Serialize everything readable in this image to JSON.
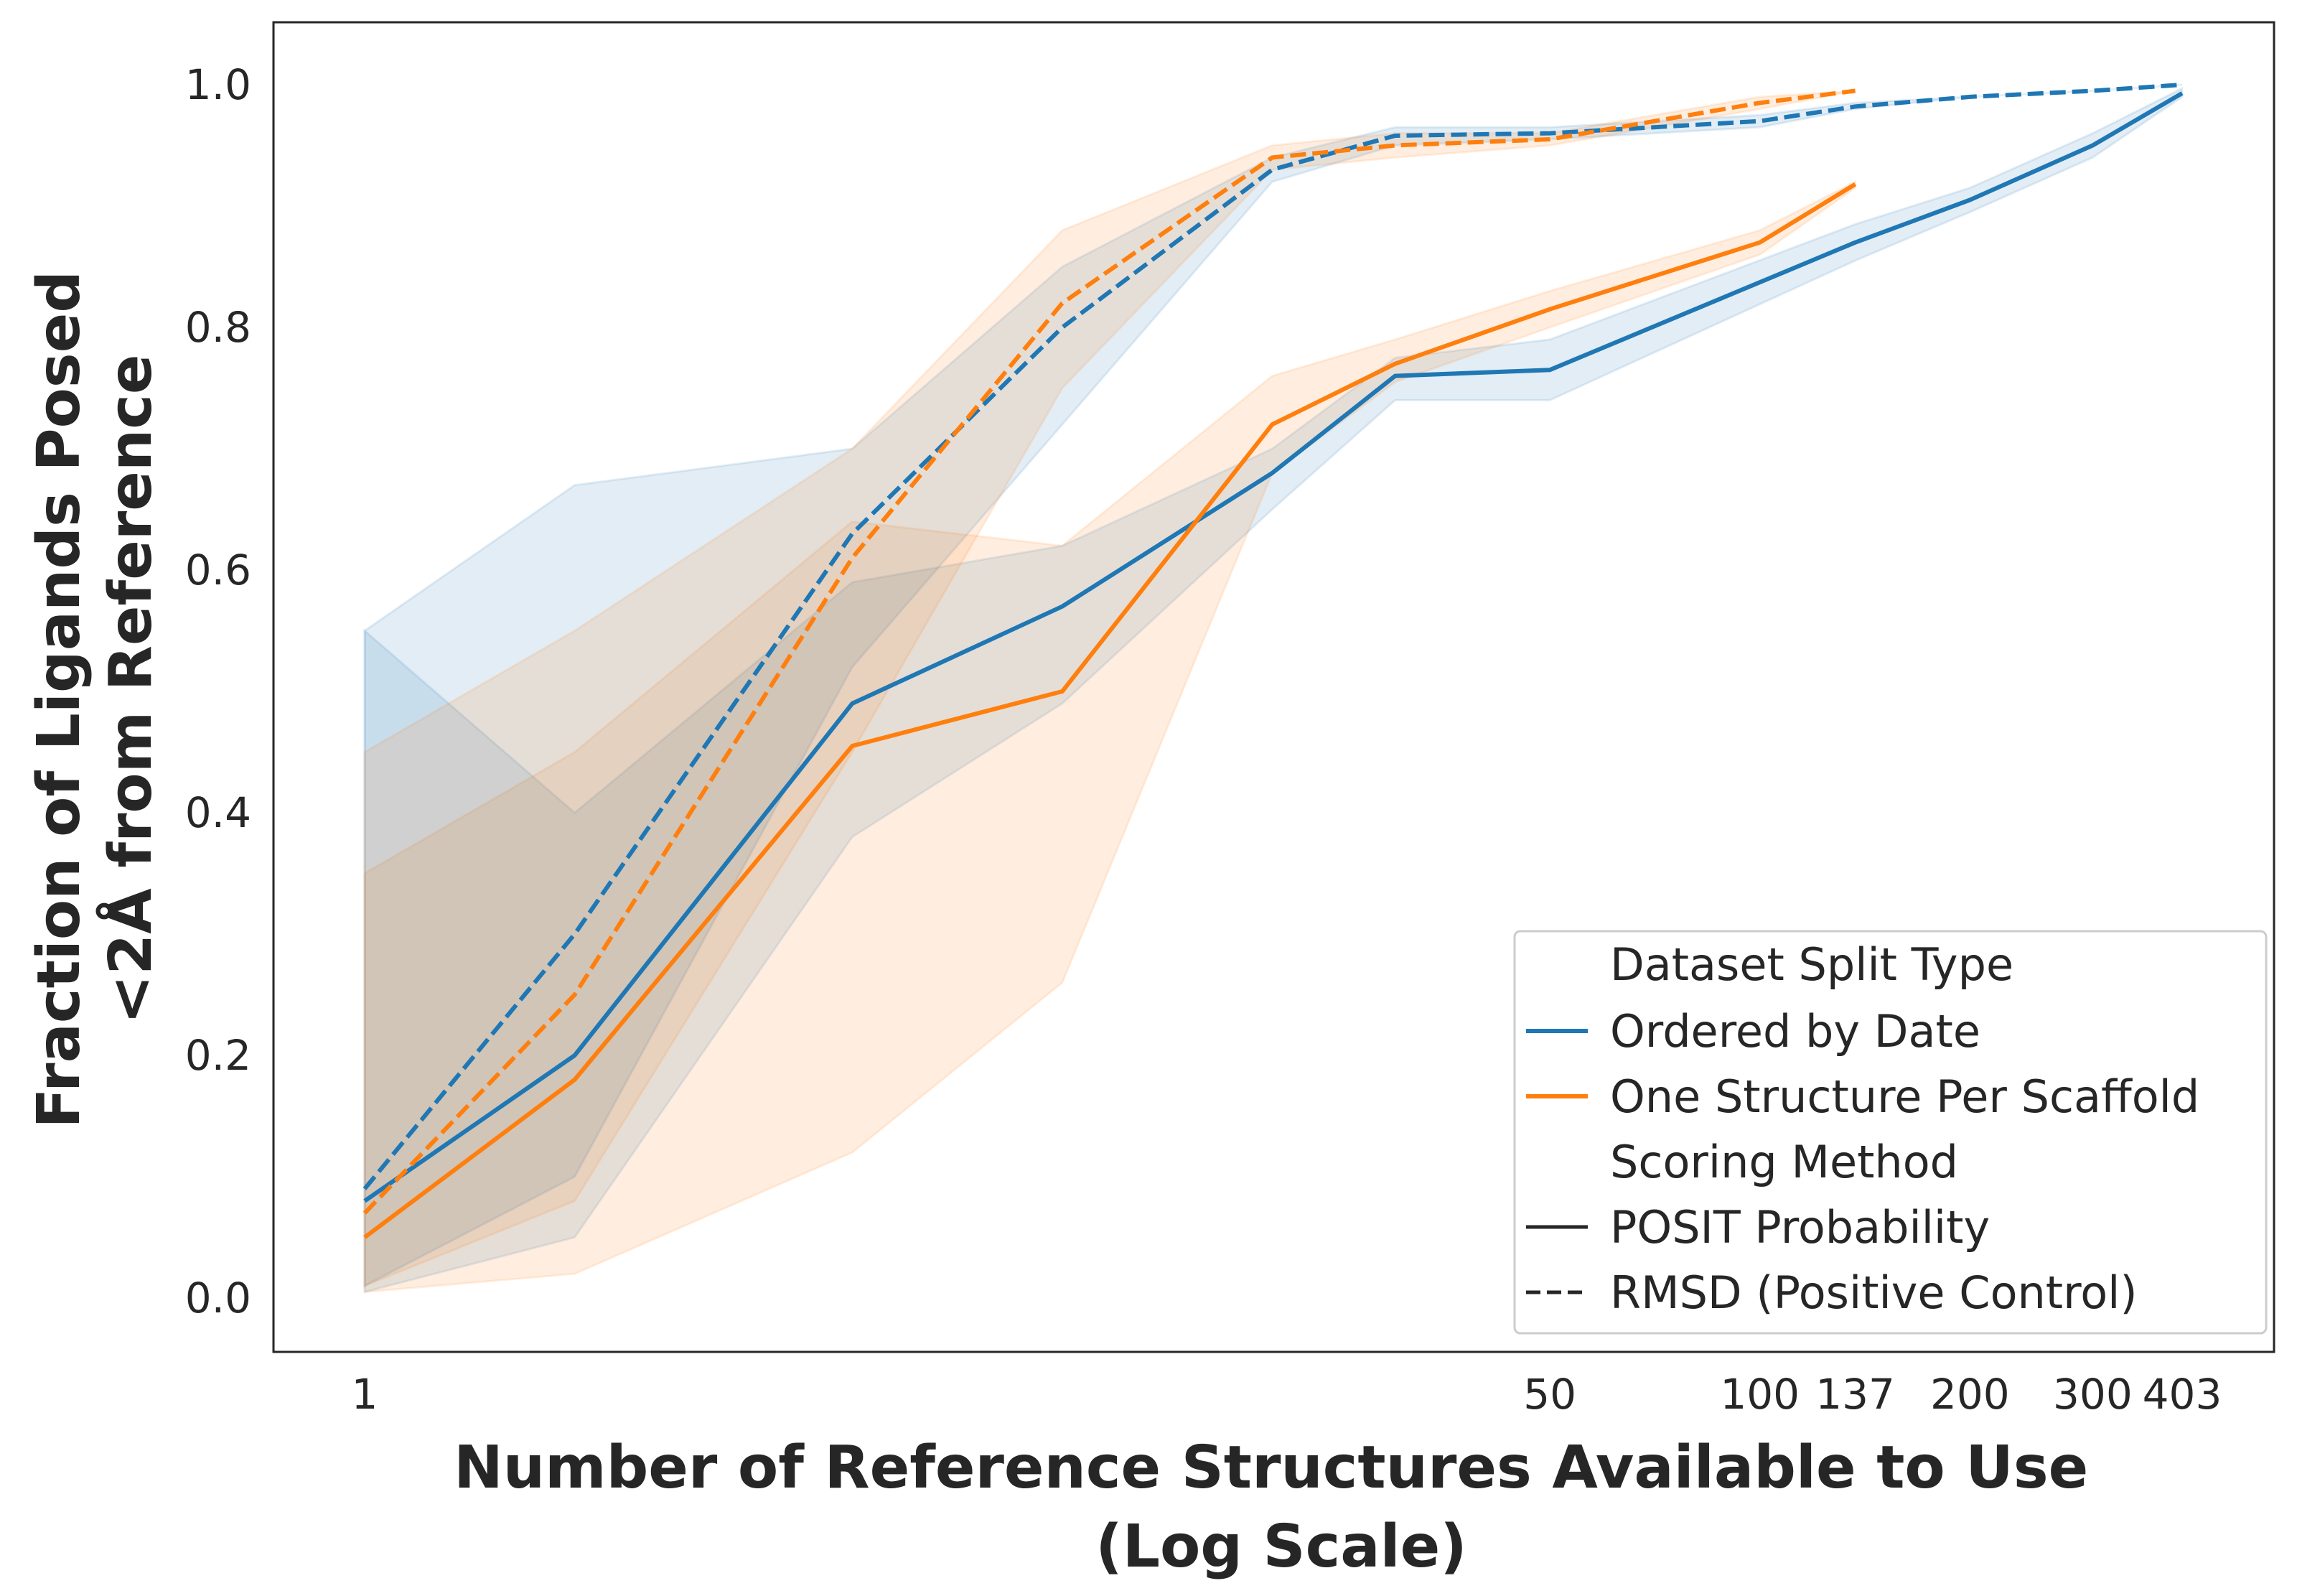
{
  "chart_data": {
    "type": "line",
    "xlabel": [
      "Number of Reference Structures Available to Use",
      "(Log Scale)"
    ],
    "ylabel": [
      "Fraction of Ligands Posed",
      "<2Å from Reference"
    ],
    "x_scale": "log",
    "x_ticks": [
      1,
      50,
      100,
      137,
      200,
      300,
      403
    ],
    "x_tick_labels": [
      "1",
      "50",
      "100",
      "137",
      "200",
      "300",
      "403"
    ],
    "y_ticks": [
      0.0,
      0.2,
      0.4,
      0.6,
      0.8,
      1.0
    ],
    "y_tick_labels": [
      "0.0",
      "0.2",
      "0.4",
      "0.6",
      "0.8",
      "1.0"
    ],
    "ylim": [
      -0.045,
      1.05
    ],
    "grid": false,
    "legend": {
      "placement": "lower right",
      "entries": [
        {
          "label": "Dataset Split Type",
          "kind": "header"
        },
        {
          "label": "Ordered by Date",
          "kind": "color",
          "color": "#1f77b4"
        },
        {
          "label": "One Structure Per Scaffold",
          "kind": "color",
          "color": "#ff7f0e"
        },
        {
          "label": "Scoring Method",
          "kind": "header"
        },
        {
          "label": "POSIT Probability",
          "kind": "style",
          "dash": "solid"
        },
        {
          "label": "RMSD (Positive Control)",
          "kind": "style",
          "dash": "dashed"
        }
      ]
    },
    "series": [
      {
        "split": "Ordered by Date",
        "method": "POSIT Probability",
        "color": "#1f77b4",
        "dash": "solid",
        "x": [
          1,
          2,
          5,
          10,
          20,
          30,
          50,
          137,
          200,
          300,
          403
        ],
        "y": [
          0.08,
          0.2,
          0.49,
          0.57,
          0.68,
          0.76,
          0.765,
          0.87,
          0.905,
          0.95,
          0.993
        ],
        "ci_low": [
          0.005,
          0.05,
          0.38,
          0.49,
          0.65,
          0.74,
          0.74,
          0.855,
          0.895,
          0.94,
          0.99
        ],
        "ci_high": [
          0.55,
          0.4,
          0.59,
          0.62,
          0.7,
          0.775,
          0.79,
          0.885,
          0.915,
          0.96,
          0.997
        ]
      },
      {
        "split": "One Structure Per Scaffold",
        "method": "POSIT Probability",
        "color": "#ff7f0e",
        "dash": "solid",
        "x": [
          1,
          2,
          5,
          10,
          20,
          30,
          50,
          100,
          137
        ],
        "y": [
          0.05,
          0.18,
          0.455,
          0.5,
          0.72,
          0.77,
          0.815,
          0.87,
          0.918
        ],
        "ci_low": [
          0.005,
          0.02,
          0.12,
          0.26,
          0.68,
          0.755,
          0.8,
          0.86,
          0.915
        ],
        "ci_high": [
          0.35,
          0.45,
          0.64,
          0.62,
          0.76,
          0.79,
          0.83,
          0.88,
          0.92
        ]
      },
      {
        "split": "Ordered by Date",
        "method": "RMSD (Positive Control)",
        "color": "#1f77b4",
        "dash": "dashed",
        "x": [
          1,
          2,
          5,
          10,
          20,
          30,
          50,
          100,
          137,
          200,
          300,
          403
        ],
        "y": [
          0.09,
          0.3,
          0.63,
          0.8,
          0.93,
          0.958,
          0.96,
          0.97,
          0.982,
          0.99,
          0.995,
          1.0
        ],
        "ci_low": [
          0.01,
          0.1,
          0.52,
          0.72,
          0.92,
          0.95,
          0.955,
          0.965,
          0.98,
          0.99,
          0.995,
          1.0
        ],
        "ci_high": [
          0.55,
          0.67,
          0.7,
          0.85,
          0.94,
          0.965,
          0.965,
          0.975,
          0.985,
          0.99,
          0.995,
          1.0
        ]
      },
      {
        "split": "One Structure Per Scaffold",
        "method": "RMSD (Positive Control)",
        "color": "#ff7f0e",
        "dash": "dashed",
        "x": [
          1,
          2,
          5,
          10,
          20,
          30,
          50,
          100,
          137
        ],
        "y": [
          0.07,
          0.25,
          0.61,
          0.82,
          0.94,
          0.95,
          0.955,
          0.985,
          0.995
        ],
        "ci_low": [
          0.01,
          0.08,
          0.45,
          0.75,
          0.93,
          0.94,
          0.95,
          0.98,
          0.995
        ],
        "ci_high": [
          0.45,
          0.55,
          0.7,
          0.88,
          0.95,
          0.96,
          0.96,
          0.99,
          0.995
        ]
      }
    ]
  }
}
